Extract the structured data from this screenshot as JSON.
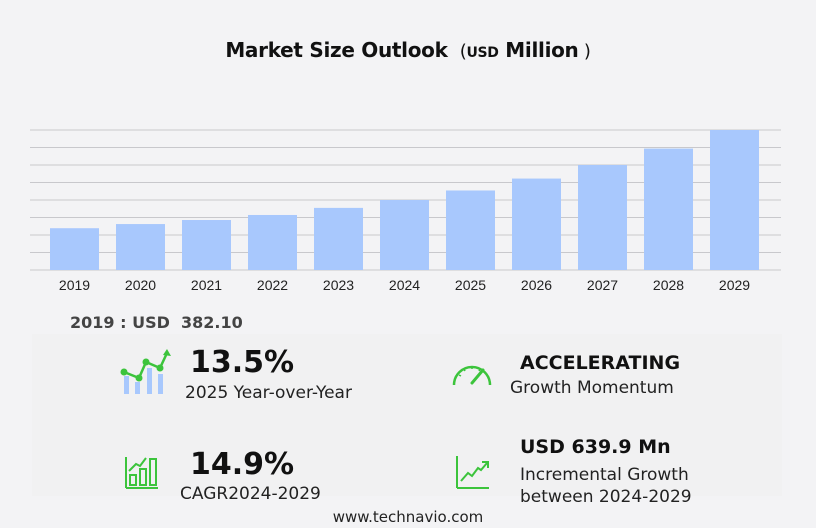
{
  "chart_data": {
    "type": "bar",
    "title": "Market Size Outlook",
    "unit": "USD",
    "unit_suffix": "Million",
    "categories": [
      "2019",
      "2020",
      "2021",
      "2022",
      "2023",
      "2024",
      "2025",
      "2026",
      "2027",
      "2028",
      "2029"
    ],
    "values": [
      382.1,
      420,
      457,
      503,
      568,
      640,
      727,
      836,
      960,
      1110,
      1280
    ],
    "ylim": [
      0,
      1280
    ],
    "grid": true,
    "bar_color": "#a8c8fd"
  },
  "base_year": {
    "label": "2019 : USD",
    "value": "382.10"
  },
  "stats": {
    "yoy": {
      "value": "13.5%",
      "label": "2025 Year-over-Year"
    },
    "momentum": {
      "value": "ACCELERATING",
      "label": "Growth Momentum"
    },
    "cagr": {
      "value": "14.9%",
      "label_a": "CAGR",
      "label_b": "2024-2029"
    },
    "incremental": {
      "value": "USD 639.9 Mn",
      "label_1": "Incremental Growth",
      "label_2": "between 2024-2029"
    }
  },
  "colors": {
    "accent_green": "#3cc43c",
    "bar": "#a8c8fd"
  },
  "footer": "www.technavio.com"
}
